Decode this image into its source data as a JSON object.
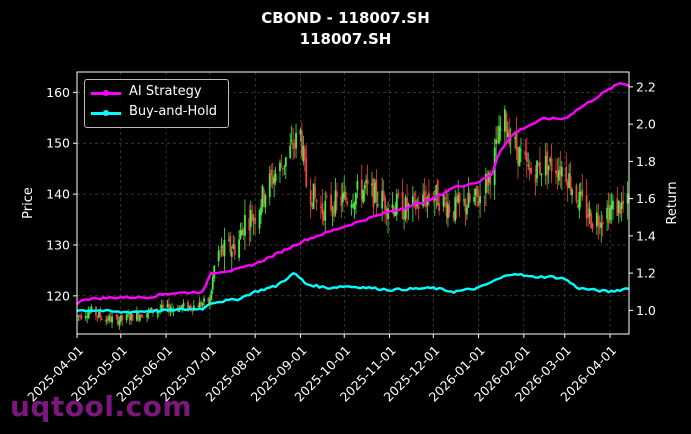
{
  "page": {
    "title_line1": "CBOND - 118007.SH",
    "title_line2": "118007.SH",
    "watermark": "uqtool.com"
  },
  "colors": {
    "background": "#000000",
    "ai_strategy": "#ff00ff",
    "buy_and_hold": "#00ffff",
    "candle_up": "#44ee44",
    "candle_down": "#ee4444",
    "grid": "#555555",
    "axis": "#ffffff",
    "watermark": "#8b1a8b"
  },
  "chart_data": {
    "type": "line",
    "grid": true,
    "legend_placement": "top-left",
    "x_axis": {
      "type": "date",
      "range": [
        "2025-04-01",
        "2026-04-14"
      ],
      "ticks": [
        "2025-04-01",
        "2025-05-01",
        "2025-06-01",
        "2025-07-01",
        "2025-08-01",
        "2025-09-01",
        "2025-10-01",
        "2025-11-01",
        "2025-12-01",
        "2026-01-01",
        "2026-02-01",
        "2026-03-01",
        "2026-04-01"
      ]
    },
    "y_left": {
      "label": "Price",
      "range": [
        112.5,
        164
      ],
      "ticks": [
        120,
        130,
        140,
        150,
        160
      ]
    },
    "y_right": {
      "label": "Return",
      "range": [
        0.873,
        2.28
      ],
      "ticks": [
        1.0,
        1.2,
        1.4,
        1.6,
        1.8,
        2.0,
        2.2
      ]
    },
    "price_series": {
      "kind": "candlestick",
      "points": [
        [
          "2025-04-01",
          116.0
        ],
        [
          "2025-04-10",
          117.0
        ],
        [
          "2025-04-20",
          115.5
        ],
        [
          "2025-05-01",
          115.3
        ],
        [
          "2025-05-15",
          116.5
        ],
        [
          "2025-06-01",
          117.5
        ],
        [
          "2025-06-20",
          118.0
        ],
        [
          "2025-07-01",
          119.0
        ],
        [
          "2025-07-05",
          128.0
        ],
        [
          "2025-07-20",
          130.0
        ],
        [
          "2025-07-25",
          135.0
        ],
        [
          "2025-08-01",
          136.0
        ],
        [
          "2025-08-10",
          142.0
        ],
        [
          "2025-08-20",
          146.0
        ],
        [
          "2025-08-28",
          150.0
        ],
        [
          "2025-09-01",
          152.0
        ],
        [
          "2025-09-05",
          142.0
        ],
        [
          "2025-09-15",
          137.0
        ],
        [
          "2025-10-01",
          139.0
        ],
        [
          "2025-10-15",
          141.0
        ],
        [
          "2025-11-01",
          138.0
        ],
        [
          "2025-11-15",
          137.0
        ],
        [
          "2025-12-01",
          140.0
        ],
        [
          "2025-12-15",
          137.0
        ],
        [
          "2026-01-01",
          139.0
        ],
        [
          "2026-01-10",
          145.0
        ],
        [
          "2026-01-18",
          155.0
        ],
        [
          "2026-01-25",
          150.0
        ],
        [
          "2026-02-05",
          144.0
        ],
        [
          "2026-02-15",
          146.0
        ],
        [
          "2026-03-01",
          145.0
        ],
        [
          "2026-03-10",
          139.0
        ],
        [
          "2026-03-20",
          135.0
        ],
        [
          "2026-04-01",
          137.0
        ],
        [
          "2026-04-14",
          138.0
        ]
      ]
    },
    "series": [
      {
        "name": "AI Strategy",
        "axis": "right",
        "points": [
          [
            "2025-04-01",
            1.03
          ],
          [
            "2025-04-05",
            1.06
          ],
          [
            "2025-05-01",
            1.07
          ],
          [
            "2025-05-20",
            1.07
          ],
          [
            "2025-06-01",
            1.09
          ],
          [
            "2025-06-27",
            1.1
          ],
          [
            "2025-07-01",
            1.2
          ],
          [
            "2025-07-20",
            1.22
          ],
          [
            "2025-08-01",
            1.25
          ],
          [
            "2025-08-15",
            1.3
          ],
          [
            "2025-08-28",
            1.35
          ],
          [
            "2025-09-05",
            1.38
          ],
          [
            "2025-09-20",
            1.42
          ],
          [
            "2025-10-01",
            1.45
          ],
          [
            "2025-10-20",
            1.5
          ],
          [
            "2025-11-01",
            1.53
          ],
          [
            "2025-11-20",
            1.57
          ],
          [
            "2025-12-01",
            1.6
          ],
          [
            "2025-12-15",
            1.66
          ],
          [
            "2026-01-01",
            1.69
          ],
          [
            "2026-01-10",
            1.73
          ],
          [
            "2026-01-15",
            1.85
          ],
          [
            "2026-01-25",
            1.95
          ],
          [
            "2026-02-01",
            1.98
          ],
          [
            "2026-02-15",
            2.03
          ],
          [
            "2026-03-01",
            2.03
          ],
          [
            "2026-03-10",
            2.08
          ],
          [
            "2026-03-20",
            2.13
          ],
          [
            "2026-04-01",
            2.19
          ],
          [
            "2026-04-08",
            2.22
          ],
          [
            "2026-04-14",
            2.21
          ]
        ]
      },
      {
        "name": "Buy-and-Hold",
        "axis": "right",
        "points": [
          [
            "2025-04-01",
            1.0
          ],
          [
            "2025-04-15",
            1.0
          ],
          [
            "2025-05-01",
            0.99
          ],
          [
            "2025-06-01",
            1.0
          ],
          [
            "2025-06-27",
            1.01
          ],
          [
            "2025-07-01",
            1.04
          ],
          [
            "2025-07-20",
            1.06
          ],
          [
            "2025-08-01",
            1.1
          ],
          [
            "2025-08-15",
            1.13
          ],
          [
            "2025-08-28",
            1.2
          ],
          [
            "2025-09-05",
            1.14
          ],
          [
            "2025-09-20",
            1.12
          ],
          [
            "2025-10-01",
            1.13
          ],
          [
            "2025-10-20",
            1.12
          ],
          [
            "2025-11-01",
            1.11
          ],
          [
            "2025-12-01",
            1.12
          ],
          [
            "2025-12-15",
            1.1
          ],
          [
            "2026-01-01",
            1.12
          ],
          [
            "2026-01-15",
            1.17
          ],
          [
            "2026-01-25",
            1.2
          ],
          [
            "2026-02-05",
            1.18
          ],
          [
            "2026-02-20",
            1.18
          ],
          [
            "2026-03-01",
            1.17
          ],
          [
            "2026-03-10",
            1.12
          ],
          [
            "2026-03-20",
            1.11
          ],
          [
            "2026-04-01",
            1.1
          ],
          [
            "2026-04-14",
            1.12
          ]
        ]
      }
    ]
  }
}
